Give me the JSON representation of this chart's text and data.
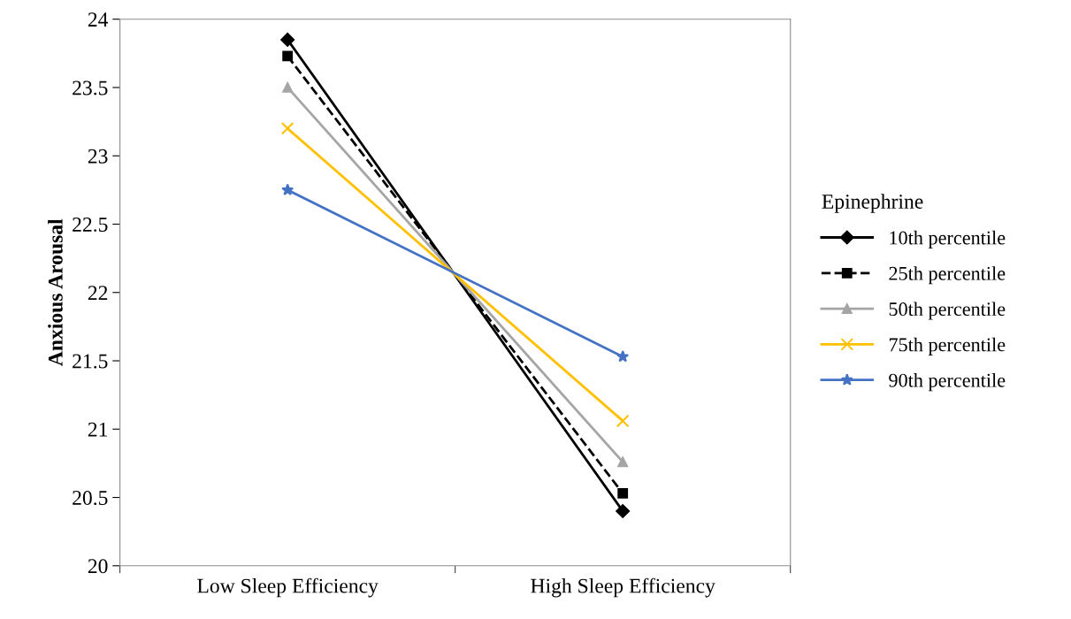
{
  "chart_data": {
    "type": "line",
    "ylabel": "Anxious Arousal",
    "legend_title": "Epinephrine",
    "legend": "right",
    "categories": [
      "Low Sleep Efficiency",
      "High Sleep Efficiency"
    ],
    "ylim": [
      20,
      24
    ],
    "yticks": [
      20,
      20.5,
      21,
      21.5,
      22,
      22.5,
      23,
      23.5,
      24
    ],
    "grid": false,
    "series": [
      {
        "name": "10th percentile",
        "color": "#000000",
        "marker": "diamond",
        "line_style": "solid",
        "values": [
          23.85,
          20.4
        ]
      },
      {
        "name": "25th percentile",
        "color": "#000000",
        "marker": "square",
        "line_style": "dashed",
        "values": [
          23.73,
          20.53
        ]
      },
      {
        "name": "50th percentile",
        "color": "#a5a5a5",
        "marker": "triangle",
        "line_style": "solid",
        "values": [
          23.5,
          20.76
        ]
      },
      {
        "name": "75th percentile",
        "color": "#ffc000",
        "marker": "cross",
        "line_style": "solid",
        "values": [
          23.2,
          21.06
        ]
      },
      {
        "name": "90th percentile",
        "color": "#4472c4",
        "marker": "star",
        "line_style": "solid",
        "values": [
          22.75,
          21.53
        ]
      }
    ]
  }
}
